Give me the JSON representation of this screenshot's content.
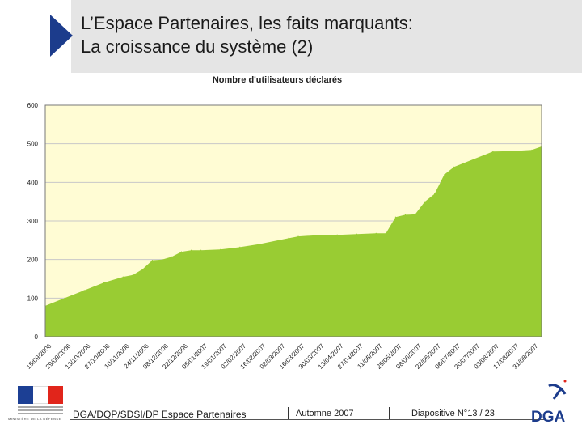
{
  "slide": {
    "title_line1": "L’Espace Partenaires, les faits marquants:",
    "title_line2": "La croissance du système (2)"
  },
  "footer": {
    "left": "DGA/DQP/SDSI/DP Espace Partenaires",
    "center": "Automne 2007",
    "right": "Diapositive N°13 / 23",
    "logo_text": "DGA"
  },
  "colors": {
    "title_arrow": "#1c3c8c",
    "plot_background": "#fffcd4",
    "area_fill": "#99cc33",
    "grid": "#c8c8c8"
  },
  "chart_data": {
    "type": "area",
    "title": "Nombre d'utilisateurs déclarés",
    "ylim": [
      0,
      600
    ],
    "yticks": [
      0,
      100,
      200,
      300,
      400,
      500,
      600
    ],
    "grid": true,
    "legend": "none",
    "xtick_labels": [
      "15/09/2006",
      "29/09/2006",
      "13/10/2006",
      "27/10/2006",
      "10/11/2006",
      "24/11/2006",
      "08/12/2006",
      "22/12/2006",
      "05/01/2007",
      "19/01/2007",
      "02/02/2007",
      "16/02/2007",
      "02/03/2007",
      "16/03/2007",
      "30/03/2007",
      "13/04/2007",
      "27/04/2007",
      "11/05/2007",
      "25/05/2007",
      "08/06/2007",
      "22/06/2007",
      "06/07/2007",
      "20/07/2007",
      "03/08/2007",
      "17/08/2007",
      "31/08/2007"
    ],
    "x": [
      "15/09/2006",
      "29/09/2006",
      "13/10/2006",
      "27/10/2006",
      "10/11/2006",
      "17/11/2006",
      "24/11/2006",
      "01/12/2006",
      "08/12/2006",
      "15/12/2006",
      "22/12/2006",
      "29/12/2006",
      "05/01/2007",
      "19/01/2007",
      "02/02/2007",
      "16/02/2007",
      "02/03/2007",
      "09/03/2007",
      "16/03/2007",
      "30/03/2007",
      "13/04/2007",
      "27/04/2007",
      "11/05/2007",
      "18/05/2007",
      "25/05/2007",
      "01/06/2007",
      "08/06/2007",
      "15/06/2007",
      "22/06/2007",
      "29/06/2007",
      "06/07/2007",
      "13/07/2007",
      "20/07/2007",
      "27/07/2007",
      "03/08/2007",
      "17/08/2007",
      "31/08/2007",
      "07/09/2007"
    ],
    "values": [
      80,
      100,
      120,
      140,
      155,
      160,
      175,
      198,
      200,
      207,
      220,
      224,
      224,
      226,
      232,
      240,
      250,
      255,
      260,
      263,
      264,
      266,
      268,
      268,
      310,
      316,
      317,
      350,
      370,
      420,
      440,
      450,
      460,
      470,
      480,
      481,
      484,
      493
    ]
  }
}
